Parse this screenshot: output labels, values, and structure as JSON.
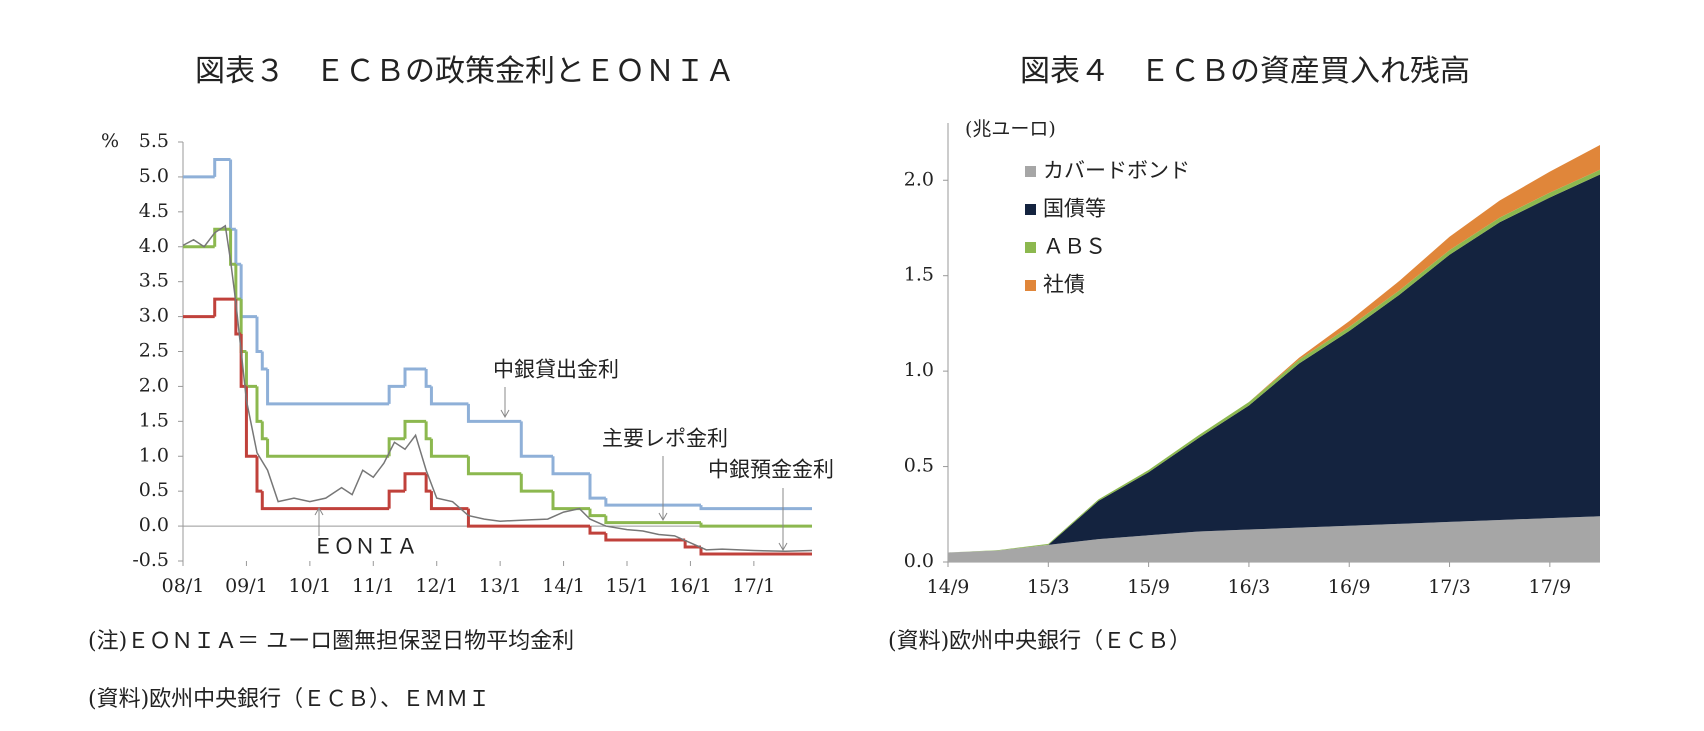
{
  "chart_data": [
    {
      "type": "line",
      "title": "図表３　ＥＣＢの政策金利とＥＯＮＩＡ",
      "y_unit": "%",
      "xlim": [
        "08/1",
        "17/12"
      ],
      "xticks": [
        "08/1",
        "09/1",
        "10/1",
        "11/1",
        "12/1",
        "13/1",
        "14/1",
        "15/1",
        "16/1",
        "17/1"
      ],
      "ylim": [
        -0.5,
        5.5
      ],
      "yticks": [
        5.5,
        {
          "value": 5,
          "label": "5.0"
        },
        4.5,
        {
          "value": 4,
          "label": "4.0"
        },
        3.5,
        {
          "value": 3,
          "label": "3.0"
        },
        2.5,
        {
          "value": 2,
          "label": "2.0"
        },
        1.5,
        {
          "value": 1,
          "label": "1.0"
        },
        0.5,
        {
          "value": 0,
          "label": "0.0"
        },
        -0.5
      ],
      "series": [
        {
          "name": "中銀貸出金利",
          "color": "#8fb0d8",
          "step": true,
          "x": [
            "08/1",
            "08/7",
            "08/10",
            "08/11",
            "08/12",
            "09/3",
            "09/4",
            "09/5",
            "11/4",
            "11/7",
            "11/11",
            "11/12",
            "12/7",
            "13/5",
            "13/11",
            "14/6",
            "14/9",
            "16/3"
          ],
          "values": [
            5.0,
            5.25,
            4.25,
            3.75,
            3.0,
            2.5,
            2.25,
            1.75,
            2.0,
            2.25,
            2.0,
            1.75,
            1.5,
            1.0,
            0.75,
            0.4,
            0.3,
            0.25
          ]
        },
        {
          "name": "主要レポ金利",
          "color": "#8cb84f",
          "step": true,
          "x": [
            "08/1",
            "08/7",
            "08/10",
            "08/11",
            "08/12",
            "09/1",
            "09/3",
            "09/4",
            "09/5",
            "11/4",
            "11/7",
            "11/11",
            "11/12",
            "12/7",
            "13/5",
            "13/11",
            "14/6",
            "14/9",
            "16/3"
          ],
          "values": [
            4.0,
            4.25,
            3.75,
            3.25,
            2.5,
            2.0,
            1.5,
            1.25,
            1.0,
            1.25,
            1.5,
            1.25,
            1.0,
            0.75,
            0.5,
            0.25,
            0.15,
            0.05,
            0.0
          ]
        },
        {
          "name": "中銀預金金利",
          "color": "#c0413b",
          "step": true,
          "x": [
            "08/1",
            "08/7",
            "08/11",
            "08/12",
            "09/1",
            "09/3",
            "09/4",
            "11/4",
            "11/7",
            "11/11",
            "11/12",
            "12/7",
            "14/6",
            "14/9",
            "15/12",
            "16/3"
          ],
          "values": [
            3.0,
            3.25,
            2.75,
            2.0,
            1.0,
            0.5,
            0.25,
            0.5,
            0.75,
            0.5,
            0.25,
            0.0,
            -0.1,
            -0.2,
            -0.3,
            -0.4
          ]
        },
        {
          "name": "ＥＯＮＩＡ",
          "color": "#777777",
          "x": [
            "08/1",
            "08/3",
            "08/5",
            "08/7",
            "08/9",
            "08/10",
            "08/11",
            "08/12",
            "09/1",
            "09/3",
            "09/5",
            "09/7",
            "09/10",
            "10/1",
            "10/4",
            "10/7",
            "10/9",
            "10/11",
            "11/1",
            "11/3",
            "11/5",
            "11/7",
            "11/9",
            "11/11",
            "12/1",
            "12/4",
            "12/7",
            "12/10",
            "13/1",
            "13/4",
            "13/7",
            "13/10",
            "14/1",
            "14/4",
            "14/6",
            "14/9",
            "15/1",
            "15/4",
            "15/7",
            "15/10",
            "16/1",
            "16/4",
            "16/7",
            "17/1",
            "17/7",
            "17/12"
          ],
          "values": [
            4.02,
            4.1,
            4.0,
            4.2,
            4.3,
            3.8,
            3.2,
            2.5,
            1.8,
            1.05,
            0.8,
            0.35,
            0.4,
            0.35,
            0.4,
            0.55,
            0.45,
            0.8,
            0.7,
            0.9,
            1.2,
            1.1,
            1.3,
            0.8,
            0.4,
            0.35,
            0.15,
            0.1,
            0.07,
            0.08,
            0.09,
            0.1,
            0.2,
            0.25,
            0.1,
            0.0,
            -0.05,
            -0.07,
            -0.12,
            -0.14,
            -0.24,
            -0.34,
            -0.33,
            -0.35,
            -0.36,
            -0.35
          ]
        }
      ],
      "notes": [
        "(注)ＥＯＮＩＡ＝ ユーロ圏無担保翌日物平均金利",
        "(資料)欧州中央銀行（ＥＣＢ）、ＥＭＭＩ"
      ]
    },
    {
      "type": "area",
      "title": "図表４　ＥＣＢの資産買入れ残高",
      "y_unit": "(兆ユーロ)",
      "xlim": [
        "14/9",
        "17/12"
      ],
      "xticks": [
        "14/9",
        "15/3",
        "15/9",
        "16/3",
        "16/9",
        "17/3",
        "17/9"
      ],
      "ylim": [
        0,
        2.3
      ],
      "yticks": [
        {
          "value": 0,
          "label": "0.0"
        },
        0.5,
        {
          "value": 1,
          "label": "1.0"
        },
        1.5,
        {
          "value": 2,
          "label": "2.0"
        }
      ],
      "legend": "upper left",
      "x": [
        "14/9",
        "14/12",
        "15/3",
        "15/6",
        "15/9",
        "15/12",
        "16/3",
        "16/6",
        "16/9",
        "16/12",
        "17/3",
        "17/6",
        "17/9",
        "17/12"
      ],
      "series": [
        {
          "name": "カバードボンド",
          "color": "#a6a6a6",
          "values": [
            0.05,
            0.06,
            0.09,
            0.12,
            0.14,
            0.16,
            0.17,
            0.18,
            0.19,
            0.2,
            0.21,
            0.22,
            0.23,
            0.24
          ]
        },
        {
          "name": "国債等",
          "color": "#14233f",
          "values": [
            0,
            0,
            0,
            0.2,
            0.33,
            0.49,
            0.65,
            0.86,
            1.02,
            1.2,
            1.4,
            1.56,
            1.68,
            1.79
          ]
        },
        {
          "name": "ＡＢＳ",
          "color": "#8cb84f",
          "values": [
            0,
            0.002,
            0.005,
            0.008,
            0.012,
            0.015,
            0.018,
            0.02,
            0.022,
            0.023,
            0.024,
            0.024,
            0.025,
            0.025
          ]
        },
        {
          "name": "社債",
          "color": "#e0863a",
          "values": [
            0,
            0,
            0,
            0,
            0,
            0,
            0,
            0.01,
            0.03,
            0.05,
            0.07,
            0.09,
            0.11,
            0.13
          ]
        }
      ],
      "notes": [
        "(資料)欧州中央銀行（ＥＣＢ）"
      ]
    }
  ]
}
